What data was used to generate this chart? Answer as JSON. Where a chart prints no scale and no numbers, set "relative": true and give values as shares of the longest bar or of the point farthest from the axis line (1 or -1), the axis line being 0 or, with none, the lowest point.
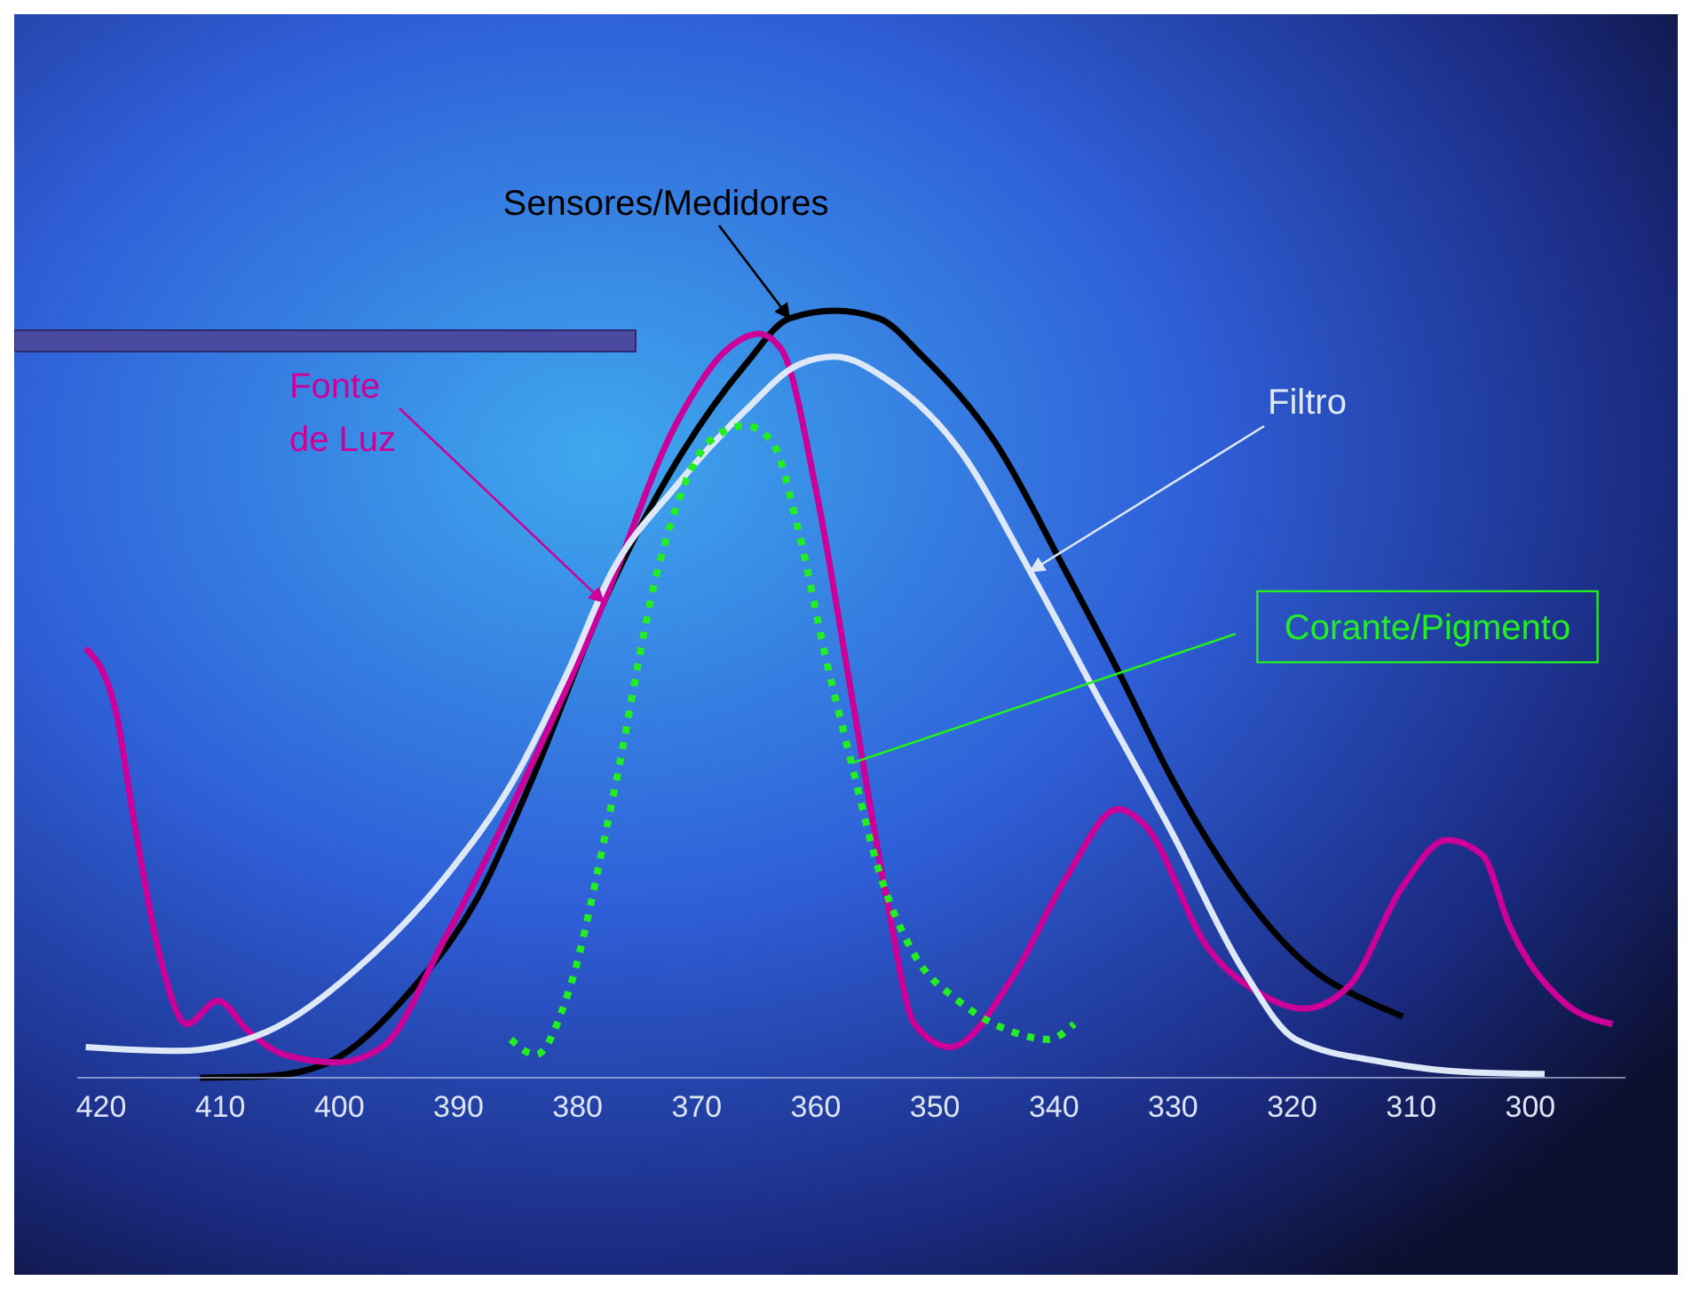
{
  "chart_data": {
    "type": "line",
    "relative": true,
    "xlim": [
      422,
      292
    ],
    "xticks": [
      420,
      410,
      400,
      390,
      380,
      370,
      360,
      350,
      340,
      330,
      320,
      310,
      300
    ],
    "series": [
      {
        "name": "Sensores/Medidores",
        "color": "#000000",
        "line_style": "solid",
        "x": [
          411.7,
          406.1,
          400.9,
          394.2,
          388.2,
          383.8,
          377.8,
          371.8,
          365.9,
          362.2,
          358.4,
          354.7,
          351,
          345,
          339,
          334.6,
          330.1,
          324.1,
          318.2,
          313.7,
          310.7
        ],
        "values": [
          0,
          0.002,
          0.02,
          0.11,
          0.24,
          0.39,
          0.62,
          0.8,
          0.93,
          0.99,
          1,
          0.99,
          0.94,
          0.83,
          0.66,
          0.53,
          0.39,
          0.24,
          0.14,
          0.1,
          0.08
        ]
      },
      {
        "name": "Fonte de Luz",
        "color": "#cc0099",
        "line_style": "solid",
        "x": [
          421.3,
          418.8,
          417.3,
          415.1,
          412.8,
          410.2,
          407.6,
          404.6,
          400.2,
          396.4,
          391.2,
          383.8,
          377.8,
          371.8,
          367.4,
          364.8,
          362.9,
          359.9,
          357,
          354,
          351.7,
          348.7,
          343.5,
          339,
          334.6,
          332.4,
          327.1,
          322.7,
          319,
          315.2,
          310.7,
          307,
          304,
          301.8,
          297.3,
          293.1
        ],
        "values": [
          0.56,
          0.48,
          0.34,
          0.16,
          0.07,
          0.1,
          0.06,
          0.03,
          0.02,
          0.04,
          0.18,
          0.41,
          0.62,
          0.85,
          0.95,
          0.97,
          0.95,
          0.76,
          0.5,
          0.23,
          0.07,
          0.04,
          0.13,
          0.26,
          0.35,
          0.33,
          0.17,
          0.11,
          0.09,
          0.12,
          0.25,
          0.31,
          0.29,
          0.2,
          0.1,
          0.07
        ]
      },
      {
        "name": "Filtro",
        "color": "#dde8f8",
        "line_style": "solid",
        "x": [
          421.3,
          413.6,
          406.1,
          398.7,
          391.2,
          385.3,
          380.8,
          377.1,
          371.8,
          365.9,
          361.4,
          358.4,
          354,
          348,
          342,
          336.1,
          330.1,
          324.1,
          319.7,
          312.2,
          304.8,
          298.8
        ],
        "values": [
          0.04,
          0.035,
          0.06,
          0.14,
          0.26,
          0.39,
          0.53,
          0.66,
          0.77,
          0.87,
          0.93,
          0.94,
          0.91,
          0.82,
          0.66,
          0.49,
          0.32,
          0.14,
          0.05,
          0.02,
          0.007,
          0.005
        ]
      },
      {
        "name": "Corante/Pigmento",
        "color": "#22ee22",
        "line_style": "dotted",
        "x": [
          385.6,
          383.5,
          380.8,
          377.1,
          373.3,
          371.1,
          368.9,
          365.9,
          363.7,
          361.4,
          359.2,
          357,
          354.7,
          351.7,
          348,
          343.5,
          340.5,
          338.3
        ],
        "values": [
          0.05,
          0.03,
          0.11,
          0.36,
          0.66,
          0.77,
          0.83,
          0.85,
          0.83,
          0.71,
          0.55,
          0.41,
          0.27,
          0.16,
          0.1,
          0.06,
          0.05,
          0.07
        ]
      }
    ]
  }
}
